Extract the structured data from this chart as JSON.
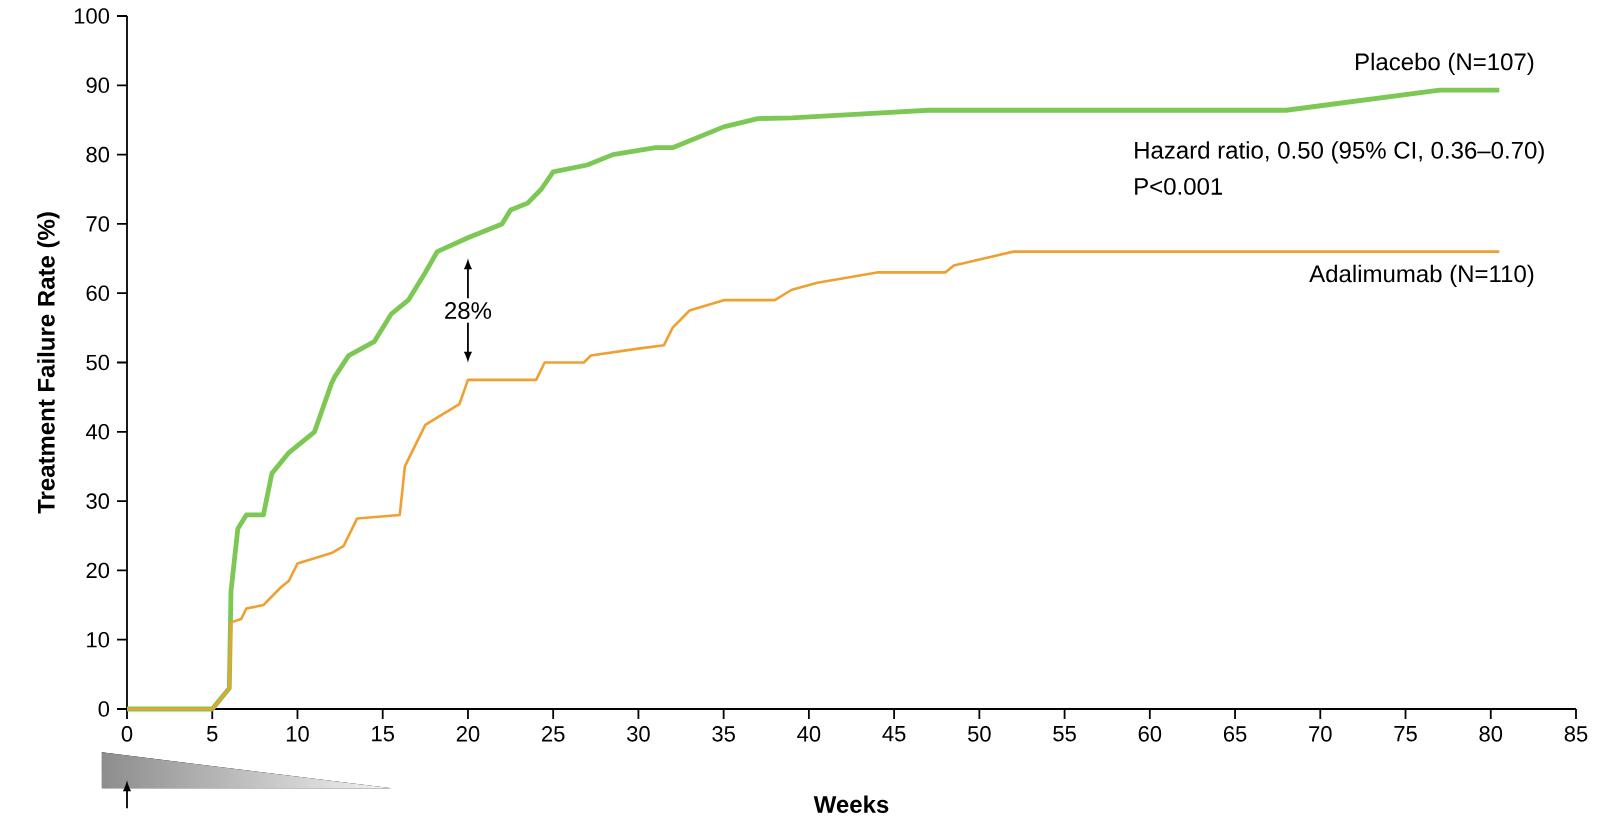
{
  "chart_data": {
    "type": "line",
    "xlabel": "Weeks",
    "ylabel": "Treatment Failure Rate (%)",
    "xlim": [
      0,
      85
    ],
    "xticks": [
      0,
      5,
      10,
      15,
      20,
      25,
      30,
      35,
      40,
      45,
      50,
      55,
      60,
      65,
      70,
      75,
      80,
      85
    ],
    "ylim": [
      0,
      100
    ],
    "yticks": [
      0,
      10,
      20,
      30,
      40,
      50,
      60,
      70,
      80,
      90,
      100
    ],
    "grid": false,
    "legend": false,
    "marker": "none",
    "line_style": "solid",
    "series": [
      {
        "name": "Placebo (N=107)",
        "color": "#7dc855",
        "x": [
          0,
          5,
          6,
          6.1,
          6.5,
          7,
          8,
          8.5,
          9.5,
          11,
          12,
          12.2,
          13,
          14.5,
          15.5,
          16.5,
          17.5,
          18.2,
          20,
          22,
          22.5,
          23.5,
          24.3,
          25,
          27,
          28.5,
          31,
          32,
          35,
          37,
          39,
          44,
          47,
          68,
          77,
          80.5
        ],
        "values": [
          0,
          0,
          3,
          17,
          26,
          28,
          28,
          34,
          37,
          40,
          47,
          48,
          51,
          53,
          57,
          59,
          63,
          66,
          68,
          70,
          72,
          73,
          75,
          77.5,
          78.5,
          80,
          81,
          81,
          84,
          85.2,
          85.3,
          86,
          86.4,
          86.4,
          89.3,
          89.3
        ]
      },
      {
        "name": "Adalimumab (N=110)",
        "color": "#f0a030",
        "x": [
          0,
          5,
          6,
          6.1,
          6.7,
          7,
          8,
          9,
          9.5,
          10,
          12,
          12.7,
          13.2,
          13.5,
          16,
          16.3,
          17.5,
          18.5,
          19.5,
          20,
          24,
          24.5,
          26.8,
          27.2,
          30,
          31.5,
          32,
          33,
          35,
          38,
          39,
          40.5,
          44,
          48,
          48.5,
          52,
          80.5
        ],
        "values": [
          0,
          0,
          3,
          12.5,
          13,
          14.5,
          15,
          17.5,
          18.5,
          21,
          22.5,
          23.5,
          26,
          27.5,
          28,
          35,
          41,
          42.5,
          44,
          47.5,
          47.5,
          50,
          50,
          51,
          52,
          52.5,
          55,
          57.5,
          59,
          59,
          60.5,
          61.5,
          63,
          63,
          64,
          66,
          66
        ]
      }
    ],
    "annotations": [
      "28%",
      "Hazard ratio, 0.50 (95% CI, 0.36–0.70)",
      "P<0.001"
    ]
  }
}
